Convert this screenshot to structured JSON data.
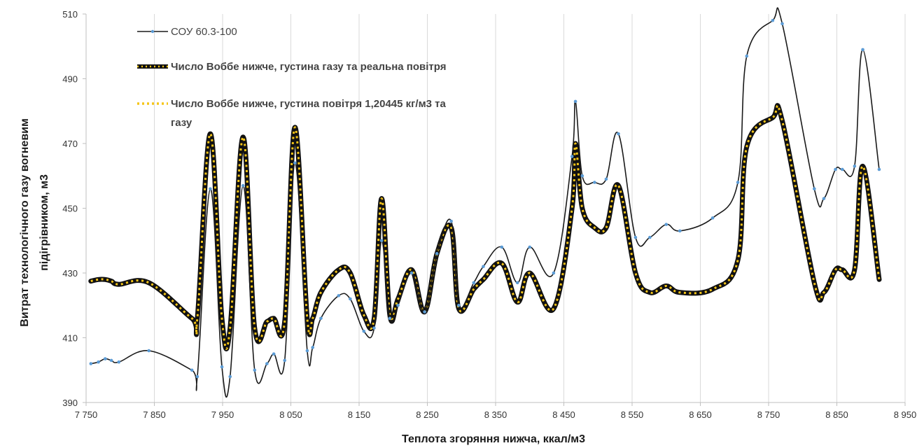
{
  "chart_data": {
    "type": "line",
    "xlabel": "Теплота згоряння нижча,  ккал/м3",
    "ylabel_lines": [
      "Витрат технологічного газу вогневим",
      "підігрівником, м3"
    ],
    "xlim": [
      7750,
      8950
    ],
    "ylim": [
      390,
      510
    ],
    "x_ticks": [
      7750,
      7850,
      7950,
      8050,
      8150,
      8250,
      8350,
      8450,
      8550,
      8650,
      8750,
      8850,
      8950
    ],
    "x_tick_labels": [
      "7 750",
      "7 850",
      "7 950",
      "8 050",
      "8 150",
      "8 250",
      "8 350",
      "8 450",
      "8 550",
      "8 650",
      "8 750",
      "8 850",
      "8 950"
    ],
    "y_ticks": [
      390,
      410,
      430,
      450,
      470,
      490,
      510
    ],
    "y_tick_labels": [
      "390",
      "410",
      "430",
      "450",
      "470",
      "490",
      "510"
    ],
    "grid": "vertical",
    "legend_position": "top-left",
    "series": [
      {
        "name": "СОУ 60.3-100",
        "style": "thin-solid",
        "color": "#1a1a1a",
        "marker_color": "#5b9bd5",
        "x": [
          7757,
          7768,
          7778,
          7787,
          7798,
          7842,
          7905,
          7913,
          7932,
          7949,
          7961,
          7980,
          7997,
          8015,
          8025,
          8041,
          8056,
          8074,
          8082,
          8094,
          8120,
          8137,
          8157,
          8172,
          8183,
          8195,
          8207,
          8227,
          8246,
          8264,
          8285,
          8296,
          8318,
          8332,
          8359,
          8382,
          8400,
          8435,
          8462,
          8467,
          8477,
          8495,
          8512,
          8530,
          8555,
          8576,
          8600,
          8620,
          8668,
          8705,
          8718,
          8756,
          8770,
          8817,
          8831,
          8848,
          8858,
          8876,
          8888,
          8912
        ],
        "y": [
          402,
          402.5,
          403.5,
          403,
          402.5,
          406,
          400,
          398,
          456,
          401,
          398,
          457,
          400,
          402,
          405,
          403,
          464,
          406,
          407,
          416,
          423,
          422,
          412,
          413,
          440,
          416,
          420,
          430,
          418,
          436,
          446,
          420,
          427,
          432,
          438,
          427,
          438,
          430,
          466,
          483,
          460,
          458,
          459,
          473,
          441,
          441,
          445,
          443,
          447,
          458,
          497,
          508,
          507,
          456,
          453,
          462,
          462,
          463,
          499,
          462
        ]
      },
      {
        "name": "Число Воббе нижче, густина газу та реальна повітря",
        "style": "thick-black",
        "color": "#111111",
        "x": [
          7757,
          7768,
          7778,
          7787,
          7798,
          7842,
          7905,
          7913,
          7932,
          7949,
          7961,
          7980,
          7997,
          8015,
          8025,
          8041,
          8056,
          8074,
          8082,
          8094,
          8120,
          8137,
          8157,
          8172,
          8183,
          8195,
          8207,
          8227,
          8246,
          8264,
          8285,
          8296,
          8318,
          8332,
          8359,
          8382,
          8400,
          8435,
          8462,
          8467,
          8477,
          8495,
          8512,
          8530,
          8555,
          8576,
          8600,
          8620,
          8668,
          8705,
          8718,
          8756,
          8770,
          8817,
          8831,
          8848,
          8858,
          8876,
          8888,
          8912
        ],
        "y": [
          427.5,
          428,
          428,
          427.5,
          426.5,
          427,
          416,
          416,
          473,
          416,
          413,
          472,
          413,
          415,
          416,
          415,
          475,
          416,
          416,
          424,
          431,
          430,
          417,
          416,
          453,
          417,
          422,
          431,
          418,
          436,
          444,
          419,
          425,
          428,
          433,
          421,
          430,
          419,
          450,
          470,
          450,
          444,
          444,
          457,
          430,
          424,
          426,
          424,
          425,
          434,
          469,
          478,
          477,
          427,
          424,
          431,
          431,
          431,
          463,
          428
        ]
      },
      {
        "name": "Число Воббе нижче, густина повітря 1,20445 кг/м3 та газу",
        "style": "dotted-yellow",
        "color": "#f5c518",
        "x": [
          7757,
          7768,
          7778,
          7787,
          7798,
          7842,
          7905,
          7913,
          7932,
          7949,
          7961,
          7980,
          7997,
          8015,
          8025,
          8041,
          8056,
          8074,
          8082,
          8094,
          8120,
          8137,
          8157,
          8172,
          8183,
          8195,
          8207,
          8227,
          8246,
          8264,
          8285,
          8296,
          8318,
          8332,
          8359,
          8382,
          8400,
          8435,
          8462,
          8467,
          8477,
          8495,
          8512,
          8530,
          8555,
          8576,
          8600,
          8620,
          8668,
          8705,
          8718,
          8756,
          8770,
          8817,
          8831,
          8848,
          8858,
          8876,
          8888,
          8912
        ],
        "y": [
          427.5,
          428,
          428,
          427.5,
          426.5,
          427,
          416,
          416,
          473,
          416,
          413,
          472,
          413,
          415,
          416,
          415,
          475,
          416,
          416,
          424,
          431,
          430,
          417,
          416,
          453,
          417,
          422,
          431,
          418,
          436,
          444,
          419,
          425,
          428,
          433,
          421,
          430,
          419,
          450,
          470,
          450,
          444,
          444,
          457,
          430,
          424,
          426,
          424,
          425,
          434,
          469,
          478,
          477,
          427,
          424,
          431,
          431,
          431,
          463,
          428
        ]
      }
    ],
    "legend_labels": {
      "s1": "СОУ 60.3-100",
      "s2": "Число Воббе нижче, густина газу та реальна повітря",
      "s3_line1": "Число Воббе нижче, густина повітря 1,20445 кг/м3 та",
      "s3_line2": "газу"
    }
  }
}
